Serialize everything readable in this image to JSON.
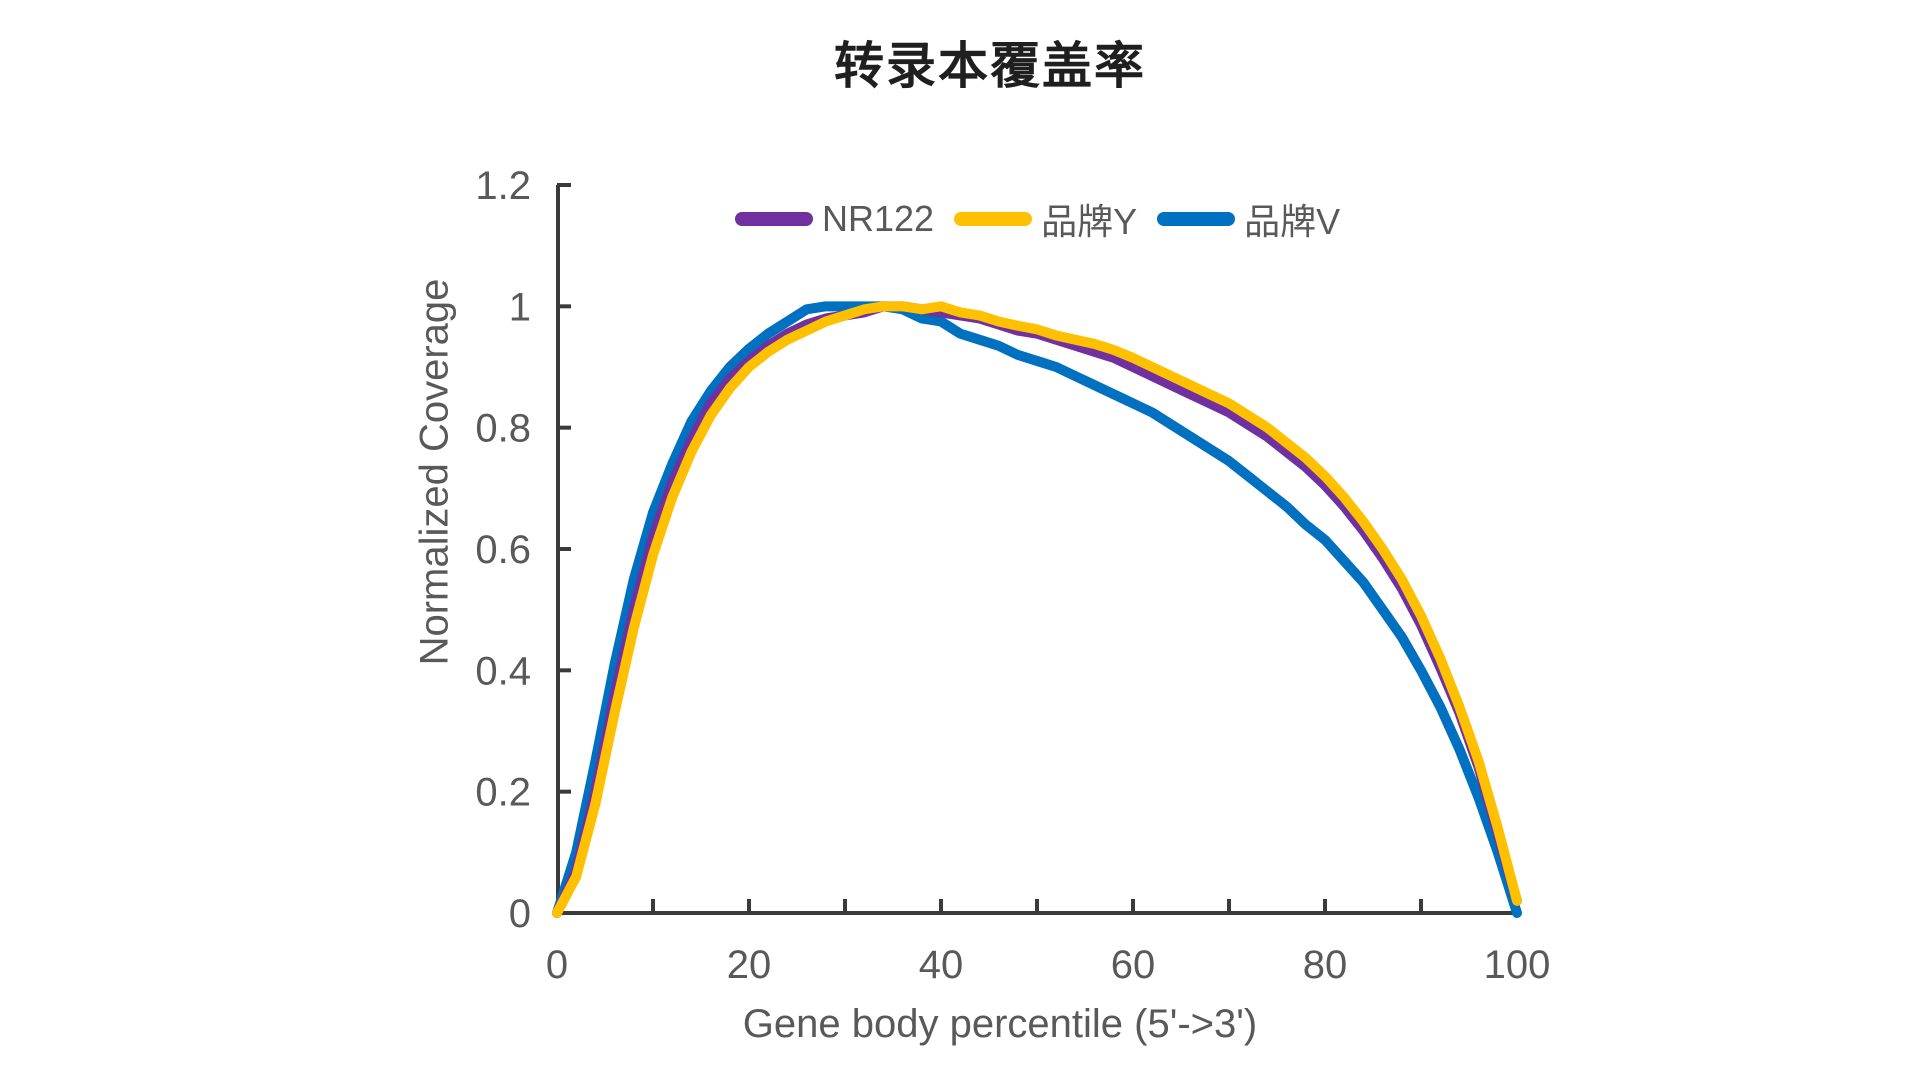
{
  "title": "转录本覆盖率",
  "colors": {
    "axis": "#3a3a3a",
    "tick_text": "#595959",
    "title_text": "#1f1f1f",
    "background": "#ffffff"
  },
  "legend": {
    "items": [
      {
        "label": "NR122",
        "color": "#7030A0"
      },
      {
        "label": "品牌Y",
        "color": "#FFC000"
      },
      {
        "label": "品牌V",
        "color": "#0070C0"
      }
    ]
  },
  "chart_data": {
    "type": "line",
    "title": "转录本覆盖率",
    "xlabel": "Gene body percentile (5'->3')",
    "ylabel": "Normalized Coverage",
    "xlim": [
      0,
      100
    ],
    "ylim": [
      0,
      1.2
    ],
    "xticks_labeled": [
      0,
      20,
      40,
      60,
      80,
      100
    ],
    "xticks_minor": [
      0,
      10,
      20,
      30,
      40,
      50,
      60,
      70,
      80,
      90,
      100
    ],
    "yticks": [
      0,
      0.2,
      0.4,
      0.6,
      0.8,
      1,
      1.2
    ],
    "ytick_labels": [
      "0",
      "0.2",
      "0.4",
      "0.6",
      "0.8",
      "1",
      "1.2"
    ],
    "grid": false,
    "legend_position": "top-center",
    "draw_order": [
      2,
      0,
      1
    ],
    "x": [
      0,
      2,
      4,
      6,
      8,
      10,
      12,
      14,
      16,
      18,
      20,
      22,
      24,
      26,
      28,
      30,
      32,
      34,
      36,
      38,
      40,
      42,
      44,
      46,
      48,
      50,
      52,
      54,
      56,
      58,
      60,
      62,
      64,
      66,
      68,
      70,
      72,
      74,
      76,
      78,
      80,
      82,
      84,
      86,
      88,
      90,
      92,
      94,
      96,
      98,
      100
    ],
    "series": [
      {
        "name": "NR122",
        "color": "#7030A0",
        "values": [
          0,
          0.07,
          0.2,
          0.36,
          0.5,
          0.62,
          0.71,
          0.78,
          0.84,
          0.88,
          0.91,
          0.935,
          0.955,
          0.97,
          0.98,
          0.985,
          0.99,
          1.0,
          1.0,
          0.995,
          0.99,
          0.985,
          0.98,
          0.97,
          0.96,
          0.955,
          0.945,
          0.935,
          0.925,
          0.915,
          0.9,
          0.885,
          0.87,
          0.855,
          0.84,
          0.825,
          0.805,
          0.785,
          0.76,
          0.735,
          0.705,
          0.67,
          0.63,
          0.585,
          0.535,
          0.475,
          0.405,
          0.33,
          0.24,
          0.13,
          0.02
        ]
      },
      {
        "name": "品牌Y",
        "color": "#FFC000",
        "values": [
          0,
          0.06,
          0.18,
          0.33,
          0.47,
          0.59,
          0.685,
          0.76,
          0.82,
          0.865,
          0.9,
          0.925,
          0.945,
          0.96,
          0.975,
          0.985,
          0.995,
          1.0,
          1.0,
          0.995,
          1.0,
          0.99,
          0.985,
          0.975,
          0.968,
          0.962,
          0.952,
          0.945,
          0.938,
          0.928,
          0.915,
          0.9,
          0.885,
          0.87,
          0.855,
          0.84,
          0.82,
          0.8,
          0.775,
          0.75,
          0.72,
          0.685,
          0.645,
          0.6,
          0.55,
          0.49,
          0.42,
          0.34,
          0.25,
          0.14,
          0.02
        ]
      },
      {
        "name": "品牌V",
        "color": "#0070C0",
        "values": [
          0,
          0.1,
          0.25,
          0.41,
          0.55,
          0.66,
          0.74,
          0.81,
          0.86,
          0.9,
          0.93,
          0.955,
          0.975,
          0.995,
          1.0,
          1.0,
          1.0,
          1.0,
          0.995,
          0.98,
          0.975,
          0.955,
          0.945,
          0.935,
          0.92,
          0.91,
          0.9,
          0.885,
          0.87,
          0.855,
          0.84,
          0.825,
          0.805,
          0.785,
          0.765,
          0.745,
          0.72,
          0.695,
          0.67,
          0.64,
          0.615,
          0.58,
          0.545,
          0.5,
          0.455,
          0.4,
          0.34,
          0.27,
          0.19,
          0.1,
          0.0
        ]
      }
    ]
  }
}
